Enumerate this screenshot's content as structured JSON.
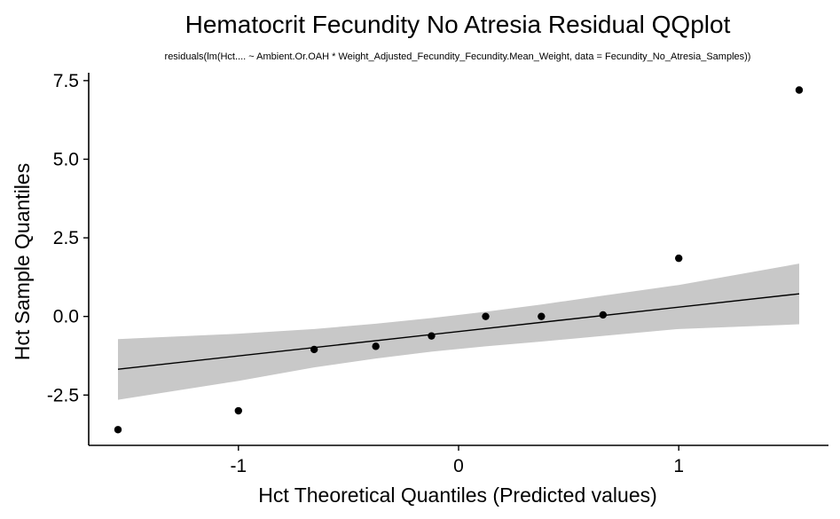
{
  "chart_data": {
    "type": "scatter",
    "title": "Hematocrit Fecundity No Atresia Residual QQplot",
    "subtitle": "residuals(lm(Hct.... ~ Ambient.Or.OAH * Weight_Adjusted_Fecundity_Fecundity.Mean_Weight, data = Fecundity_No_Atresia_Samples))",
    "xlabel": "Hct Theoretical Quantiles (Predicted values)",
    "ylabel": "Hct Sample Quantiles",
    "xlim": [
      -1.68,
      1.68
    ],
    "ylim": [
      -4.1,
      7.75
    ],
    "x_ticks": [
      -1,
      0,
      1
    ],
    "x_tick_labels": [
      "-1",
      "0",
      "1"
    ],
    "y_ticks": [
      -2.5,
      0.0,
      2.5,
      5.0,
      7.5
    ],
    "y_tick_labels": [
      "-2.5",
      "0.0",
      "2.5",
      "5.0",
      "7.5"
    ],
    "grid": false,
    "points": [
      {
        "x": -1.547,
        "y": -3.6
      },
      {
        "x": -1.0,
        "y": -3.0
      },
      {
        "x": -0.656,
        "y": -1.05
      },
      {
        "x": -0.376,
        "y": -0.95
      },
      {
        "x": -0.123,
        "y": -0.62
      },
      {
        "x": 0.123,
        "y": 0.0
      },
      {
        "x": 0.376,
        "y": 0.0
      },
      {
        "x": 0.656,
        "y": 0.05
      },
      {
        "x": 1.0,
        "y": 1.85
      },
      {
        "x": 1.547,
        "y": 7.2
      }
    ],
    "reference_line": {
      "x": [
        -1.547,
        1.547
      ],
      "y": [
        -1.68,
        0.72
      ]
    },
    "confidence_band": {
      "x": [
        -1.547,
        -1.0,
        -0.656,
        -0.376,
        -0.123,
        0.123,
        0.376,
        0.656,
        1.0,
        1.547
      ],
      "lower": [
        -2.65,
        -2.05,
        -1.62,
        -1.34,
        -1.12,
        -0.95,
        -0.8,
        -0.62,
        -0.4,
        -0.25
      ],
      "upper": [
        -0.72,
        -0.55,
        -0.4,
        -0.23,
        -0.05,
        0.15,
        0.38,
        0.66,
        1.0,
        1.68
      ]
    },
    "colors": {
      "points": "#000000",
      "line": "#000000",
      "band": "#c8c8c8",
      "axis": "#000000"
    }
  }
}
